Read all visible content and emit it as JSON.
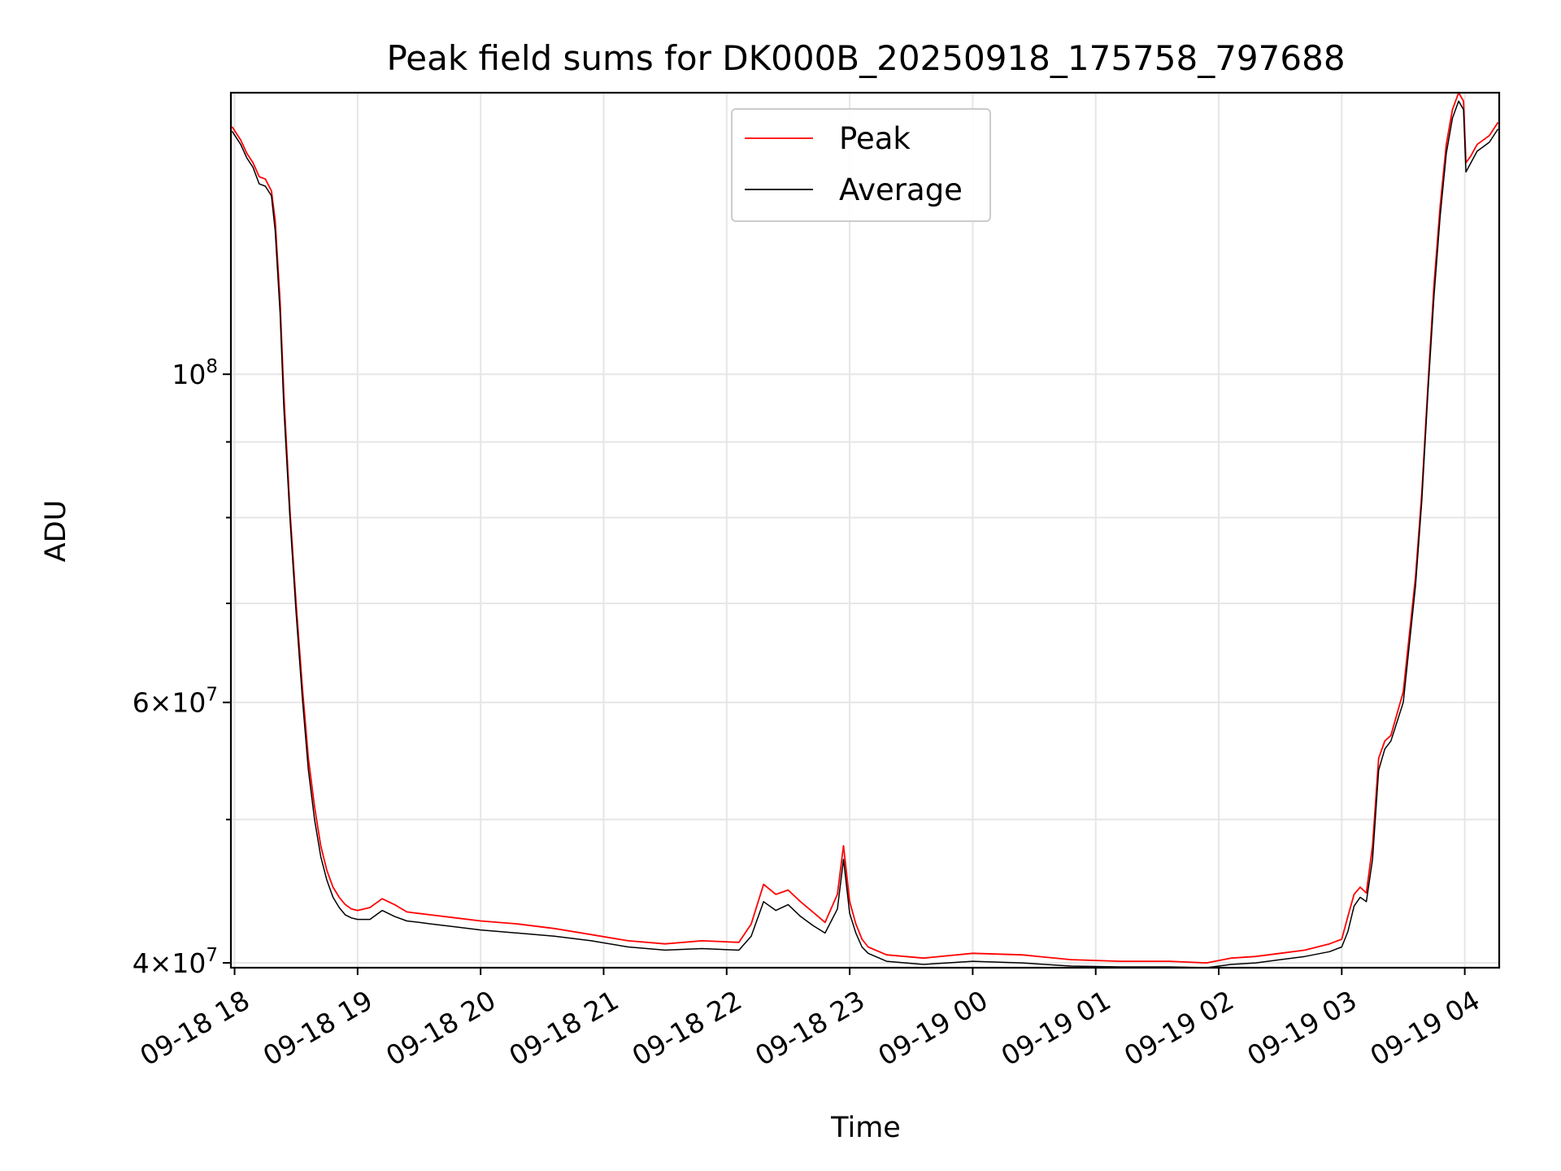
{
  "chart_data": {
    "type": "line",
    "title": "Peak field sums for DK000B_20250918_175758_797688",
    "xlabel": "Time",
    "ylabel": "ADU",
    "yscale": "log",
    "ylim": [
      39700000,
      155000000
    ],
    "xlim_hours": [
      -0.03,
      10.28
    ],
    "grid": true,
    "legend_location": "upper center",
    "x_ticks": [
      {
        "hour": 0,
        "label": "09-18 18"
      },
      {
        "hour": 1,
        "label": "09-18 19"
      },
      {
        "hour": 2,
        "label": "09-18 20"
      },
      {
        "hour": 3,
        "label": "09-18 21"
      },
      {
        "hour": 4,
        "label": "09-18 22"
      },
      {
        "hour": 5,
        "label": "09-18 23"
      },
      {
        "hour": 6,
        "label": "09-19 00"
      },
      {
        "hour": 7,
        "label": "09-19 01"
      },
      {
        "hour": 8,
        "label": "09-19 02"
      },
      {
        "hour": 9,
        "label": "09-19 03"
      },
      {
        "hour": 10,
        "label": "09-19 04"
      }
    ],
    "y_ticks_major": [
      {
        "value": 40000000,
        "base": "4×10",
        "exp": "7"
      },
      {
        "value": 60000000,
        "base": "6×10",
        "exp": "7"
      },
      {
        "value": 100000000,
        "base": "10",
        "exp": "8"
      }
    ],
    "y_ticks_minor": [
      50000000,
      70000000,
      80000000,
      90000000
    ],
    "series": [
      {
        "name": "Peak",
        "color": "#ff0000",
        "x_hours": [
          -0.02,
          0.05,
          0.1,
          0.15,
          0.2,
          0.25,
          0.3,
          0.33,
          0.37,
          0.4,
          0.45,
          0.5,
          0.55,
          0.6,
          0.65,
          0.7,
          0.75,
          0.8,
          0.85,
          0.9,
          0.95,
          1.0,
          1.1,
          1.2,
          1.3,
          1.4,
          1.5,
          1.6,
          1.8,
          2.0,
          2.3,
          2.6,
          2.9,
          3.2,
          3.5,
          3.8,
          4.1,
          4.2,
          4.3,
          4.4,
          4.5,
          4.6,
          4.7,
          4.8,
          4.9,
          4.95,
          5.0,
          5.05,
          5.1,
          5.15,
          5.3,
          5.6,
          6.0,
          6.4,
          6.8,
          7.2,
          7.6,
          7.9,
          8.1,
          8.3,
          8.5,
          8.7,
          8.9,
          9.0,
          9.05,
          9.1,
          9.15,
          9.2,
          9.25,
          9.3,
          9.35,
          9.4,
          9.5,
          9.6,
          9.65,
          9.7,
          9.75,
          9.8,
          9.85,
          9.9,
          9.95,
          9.99,
          10.01,
          10.05,
          10.1,
          10.2,
          10.27
        ],
        "values": [
          147000000,
          144000000,
          141000000,
          139000000,
          136000000,
          135500000,
          133000000,
          127000000,
          112000000,
          97000000,
          81000000,
          70000000,
          61500000,
          55000000,
          51000000,
          48000000,
          46200000,
          45000000,
          44300000,
          43800000,
          43500000,
          43400000,
          43600000,
          44200000,
          43800000,
          43300000,
          43200000,
          43100000,
          42900000,
          42700000,
          42500000,
          42200000,
          41800000,
          41400000,
          41200000,
          41400000,
          41300000,
          42500000,
          45200000,
          44500000,
          44800000,
          44000000,
          43300000,
          42600000,
          44500000,
          48000000,
          44000000,
          42500000,
          41500000,
          41000000,
          40500000,
          40300000,
          40600000,
          40500000,
          40200000,
          40100000,
          40100000,
          40000000,
          40300000,
          40400000,
          40600000,
          40800000,
          41200000,
          41500000,
          43000000,
          44500000,
          45000000,
          44600000,
          48000000,
          55000000,
          56500000,
          57000000,
          61000000,
          73000000,
          83000000,
          98000000,
          115000000,
          130000000,
          143000000,
          151000000,
          155000000,
          153000000,
          139000000,
          140500000,
          143000000,
          145000000,
          148000000
        ]
      },
      {
        "name": "Average",
        "color": "#000000",
        "x_hours": [
          -0.02,
          0.05,
          0.1,
          0.15,
          0.2,
          0.25,
          0.3,
          0.33,
          0.37,
          0.4,
          0.45,
          0.5,
          0.55,
          0.6,
          0.65,
          0.7,
          0.75,
          0.8,
          0.85,
          0.9,
          0.95,
          1.0,
          1.1,
          1.2,
          1.3,
          1.4,
          1.5,
          1.6,
          1.8,
          2.0,
          2.3,
          2.6,
          2.9,
          3.2,
          3.5,
          3.8,
          4.1,
          4.2,
          4.3,
          4.4,
          4.5,
          4.6,
          4.7,
          4.8,
          4.9,
          4.95,
          5.0,
          5.05,
          5.1,
          5.15,
          5.3,
          5.6,
          6.0,
          6.4,
          6.8,
          7.2,
          7.6,
          7.9,
          8.1,
          8.3,
          8.5,
          8.7,
          8.9,
          9.0,
          9.05,
          9.1,
          9.15,
          9.2,
          9.25,
          9.3,
          9.35,
          9.4,
          9.5,
          9.6,
          9.65,
          9.7,
          9.75,
          9.8,
          9.85,
          9.9,
          9.95,
          9.99,
          10.01,
          10.05,
          10.1,
          10.2,
          10.27
        ],
        "values": [
          146000000,
          143000000,
          140000000,
          138000000,
          134500000,
          134000000,
          132000000,
          125000000,
          110000000,
          95000000,
          80000000,
          69000000,
          60500000,
          54000000,
          50000000,
          47200000,
          45500000,
          44300000,
          43600000,
          43100000,
          42900000,
          42800000,
          42800000,
          43400000,
          43000000,
          42700000,
          42600000,
          42500000,
          42300000,
          42100000,
          41900000,
          41700000,
          41400000,
          41000000,
          40800000,
          40900000,
          40800000,
          41700000,
          44000000,
          43400000,
          43800000,
          43000000,
          42400000,
          41900000,
          43500000,
          47000000,
          43200000,
          41900000,
          41000000,
          40600000,
          40100000,
          39900000,
          40100000,
          40000000,
          39800000,
          39750000,
          39750000,
          39700000,
          39900000,
          40000000,
          40200000,
          40400000,
          40700000,
          41000000,
          42000000,
          43700000,
          44300000,
          44000000,
          47000000,
          54000000,
          55800000,
          56500000,
          60000000,
          72000000,
          82000000,
          97000000,
          113000000,
          128000000,
          141000000,
          149000000,
          153000000,
          151000000,
          137000000,
          139000000,
          141500000,
          143500000,
          146500000
        ]
      }
    ]
  }
}
